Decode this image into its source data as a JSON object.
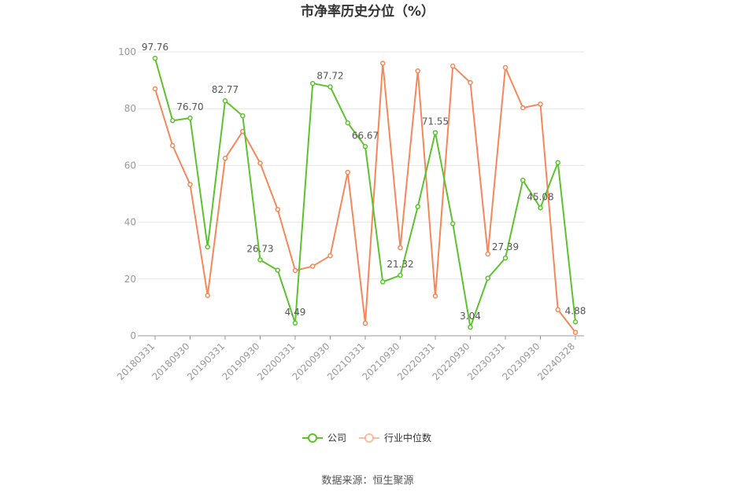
{
  "chart_data": {
    "type": "line",
    "title": "市净率历史分位（%）",
    "xlabel": "",
    "ylabel": "",
    "ylim": [
      0,
      100
    ],
    "yticks": [
      0,
      20,
      40,
      60,
      80,
      100
    ],
    "x": [
      "20180331",
      "20180630",
      "20180930",
      "20181231",
      "20190331",
      "20190630",
      "20190930",
      "20191231",
      "20200331",
      "20200630",
      "20200930",
      "20201231",
      "20210331",
      "20210630",
      "20210930",
      "20211231",
      "20220331",
      "20220630",
      "20220930",
      "20221231",
      "20230331",
      "20230630",
      "20230930",
      "20231231",
      "20240328"
    ],
    "xtick_labels": [
      "20180331",
      "20180930",
      "20190331",
      "20190930",
      "20200331",
      "20200930",
      "20210331",
      "20210930",
      "20220331",
      "20220930",
      "20230331",
      "20230930",
      "20240328"
    ],
    "series": [
      {
        "name": "公司",
        "color": "#5cc22f",
        "values": [
          97.76,
          75.8,
          76.7,
          31.3,
          82.77,
          77.5,
          26.73,
          23.1,
          4.49,
          88.9,
          87.72,
          75.0,
          66.67,
          19.0,
          21.32,
          45.5,
          71.55,
          39.5,
          3.04,
          20.3,
          27.39,
          54.8,
          45.08,
          61.0,
          4.88
        ]
      },
      {
        "name": "行业中位数",
        "color": "#f5885a",
        "values": [
          87.0,
          67.0,
          53.3,
          14.2,
          62.5,
          72.0,
          60.8,
          44.5,
          23.0,
          24.5,
          28.2,
          57.6,
          4.4,
          96.0,
          31.0,
          93.3,
          14.0,
          95.0,
          89.2,
          28.8,
          94.5,
          80.3,
          81.6,
          9.2,
          1.2
        ]
      }
    ],
    "data_labels": [
      {
        "series": 0,
        "index": 0,
        "text": "97.76"
      },
      {
        "series": 0,
        "index": 2,
        "text": "76.70"
      },
      {
        "series": 0,
        "index": 4,
        "text": "82.77"
      },
      {
        "series": 0,
        "index": 6,
        "text": "26.73"
      },
      {
        "series": 0,
        "index": 8,
        "text": "4.49"
      },
      {
        "series": 0,
        "index": 10,
        "text": "87.72"
      },
      {
        "series": 0,
        "index": 12,
        "text": "66.67"
      },
      {
        "series": 0,
        "index": 14,
        "text": "21.32"
      },
      {
        "series": 0,
        "index": 16,
        "text": "71.55"
      },
      {
        "series": 0,
        "index": 18,
        "text": "3.04"
      },
      {
        "series": 0,
        "index": 20,
        "text": "27.39"
      },
      {
        "series": 0,
        "index": 22,
        "text": "45.08"
      },
      {
        "series": 0,
        "index": 24,
        "text": "4.88"
      }
    ],
    "grid": true,
    "legend_position": "bottom-center"
  },
  "footer": {
    "source": "数据来源：恒生聚源"
  }
}
